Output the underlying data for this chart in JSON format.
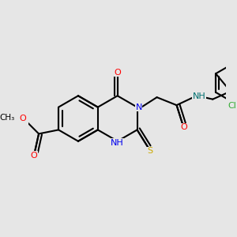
{
  "bg_color": "#e6e6e6",
  "bond_color": "#000000",
  "bond_width": 1.5,
  "colors": {
    "N": "#0000ee",
    "O": "#ff0000",
    "S": "#ccaa00",
    "Cl": "#33aa33",
    "NH": "#007070",
    "C": "#000000"
  },
  "font_size": 8.0
}
